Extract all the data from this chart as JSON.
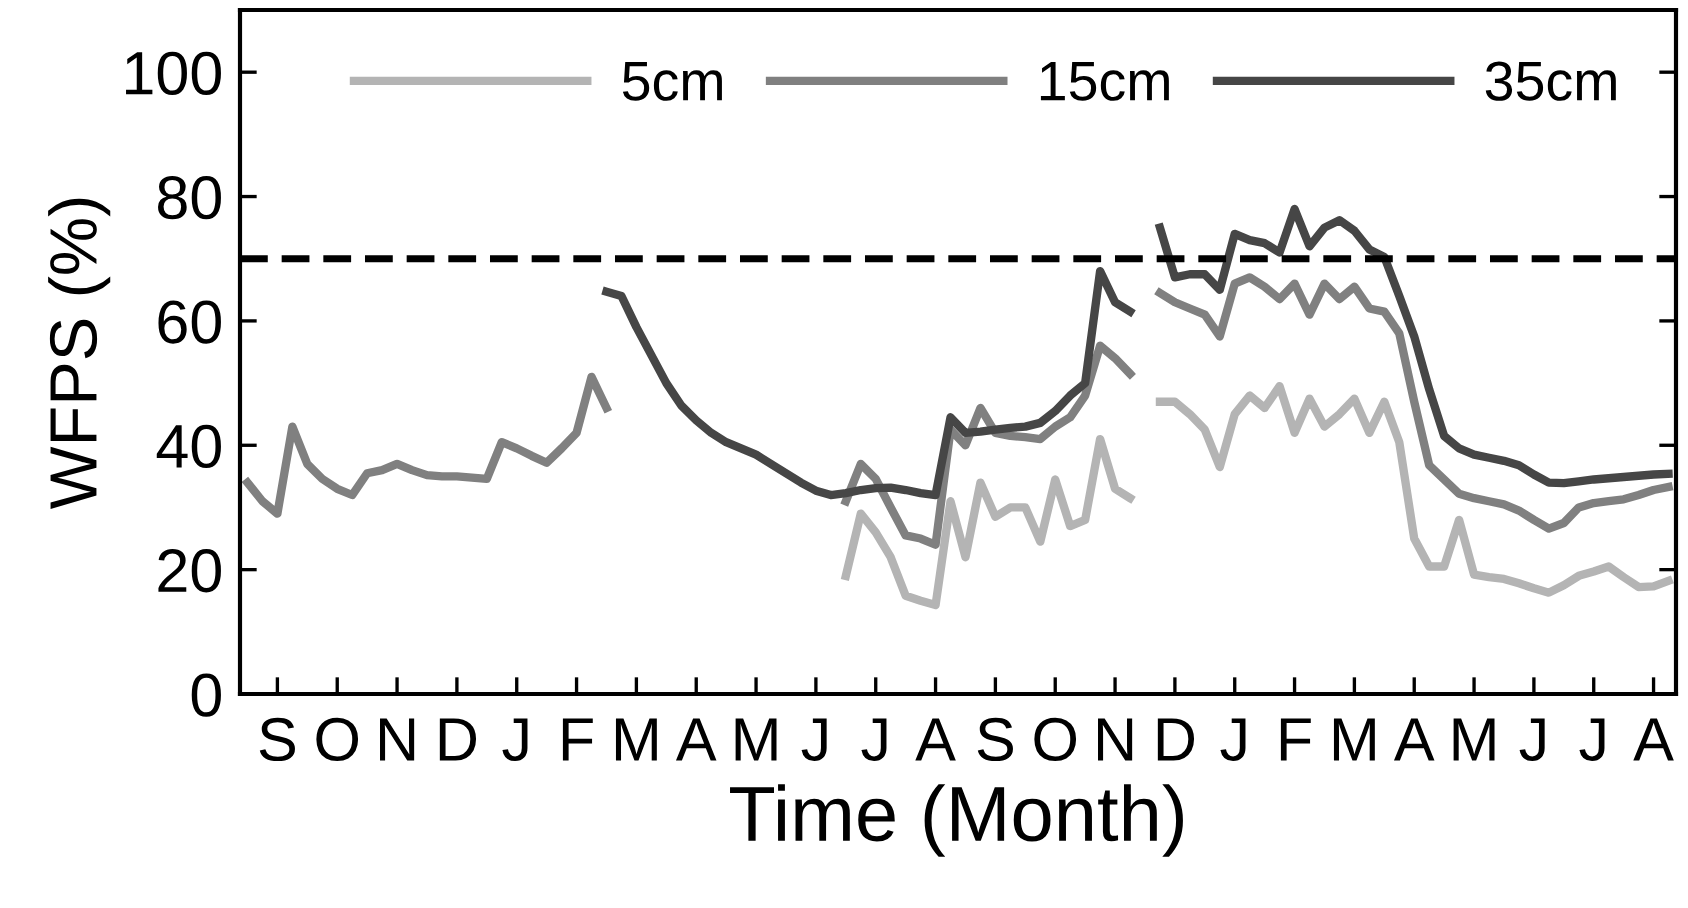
{
  "chart_data": {
    "type": "line",
    "xlabel": "Time (Month)",
    "ylabel": "WFPS (%)",
    "categories": [
      null,
      null,
      "S",
      null,
      null,
      null,
      "O",
      null,
      null,
      null,
      "N",
      null,
      null,
      null,
      "D",
      null,
      null,
      null,
      "J",
      null,
      null,
      null,
      "F",
      null,
      null,
      null,
      "M",
      null,
      null,
      null,
      "A",
      null,
      null,
      null,
      "M",
      null,
      null,
      null,
      "J",
      null,
      null,
      null,
      "J",
      null,
      null,
      null,
      "A",
      null,
      null,
      null,
      "S",
      null,
      null,
      null,
      "O",
      null,
      null,
      null,
      "N",
      null,
      null,
      null,
      "D",
      null,
      null,
      null,
      "J",
      null,
      null,
      null,
      "F",
      null,
      null,
      null,
      "M",
      null,
      null,
      null,
      "A",
      null,
      null,
      null,
      "M",
      null,
      null,
      null,
      "J",
      null,
      null,
      null,
      "J",
      null,
      null,
      null,
      "A",
      null
    ],
    "ylim": [
      0,
      110
    ],
    "yticks": [
      0,
      20,
      40,
      60,
      80,
      100
    ],
    "grid": false,
    "legend": "top",
    "marker": "none",
    "line_style": "solid",
    "ref_lines": [
      {
        "axis": "y",
        "value": 70,
        "color": "#000000",
        "line_style": "dashed"
      }
    ],
    "series": [
      {
        "name": "5cm",
        "color": "#b4b4b4",
        "values": [
          null,
          null,
          null,
          null,
          null,
          null,
          null,
          null,
          null,
          null,
          null,
          null,
          null,
          null,
          null,
          null,
          null,
          null,
          null,
          null,
          null,
          null,
          null,
          null,
          null,
          null,
          null,
          null,
          null,
          null,
          null,
          null,
          null,
          null,
          null,
          null,
          null,
          null,
          null,
          null,
          19,
          29,
          26,
          22,
          15.8,
          15,
          14.3,
          31,
          22,
          34,
          28.5,
          30,
          30,
          24.5,
          34.5,
          27,
          28,
          41,
          33,
          31.5,
          null,
          47,
          47,
          45,
          42.5,
          36.5,
          45,
          48,
          46,
          49.5,
          42,
          47.5,
          43,
          45,
          47.5,
          42,
          47,
          40.5,
          25,
          20.5,
          20.5,
          28,
          19.2,
          18.8,
          18.5,
          17.8,
          17,
          16.3,
          17.5,
          19,
          19.7,
          20.5,
          18.8,
          17.2,
          17.3,
          18.2
        ]
      },
      {
        "name": "15cm",
        "color": "#808080",
        "values": [
          34,
          31,
          29,
          43,
          37,
          34.6,
          33,
          32,
          35.5,
          36,
          37,
          36,
          35.2,
          35,
          35,
          34.8,
          34.6,
          40.5,
          39.5,
          38.3,
          37.2,
          39.5,
          42,
          51,
          46,
          null,
          null,
          null,
          null,
          null,
          null,
          null,
          null,
          null,
          null,
          null,
          null,
          null,
          null,
          null,
          31,
          37,
          34.6,
          30,
          25.5,
          25,
          24,
          42.5,
          40,
          46,
          42,
          41.5,
          41.3,
          41,
          43,
          44.5,
          48,
          56,
          54,
          51.5,
          null,
          64.5,
          63,
          62,
          61,
          57.5,
          66,
          67,
          65.5,
          63.5,
          66,
          61,
          66,
          63.5,
          65.5,
          62,
          61.5,
          58,
          47,
          36.8,
          34.5,
          32.2,
          31.5,
          31,
          30.5,
          29.5,
          28,
          26.6,
          27.5,
          30,
          30.7,
          31,
          31.3,
          32,
          32.8,
          33.3
        ]
      },
      {
        "name": "35cm",
        "color": "#464646",
        "values": [
          null,
          null,
          null,
          null,
          null,
          null,
          null,
          null,
          null,
          null,
          null,
          null,
          null,
          null,
          null,
          null,
          null,
          null,
          null,
          null,
          null,
          null,
          null,
          null,
          64.7,
          64,
          59,
          54.5,
          50,
          46.4,
          44,
          42,
          40.5,
          39.5,
          38.5,
          37,
          35.5,
          34,
          32.7,
          32,
          32.3,
          32.8,
          33.1,
          33.2,
          32.8,
          32.3,
          32,
          44.5,
          42,
          42.2,
          42.5,
          42.8,
          43,
          43.6,
          45.5,
          48,
          50,
          68,
          63,
          61.5,
          null,
          75,
          67,
          67.5,
          67.5,
          65,
          74,
          73,
          72.5,
          71,
          78,
          72,
          75,
          76.2,
          74.5,
          71.5,
          70.3,
          64,
          57.5,
          49,
          41.5,
          39.5,
          38.5,
          38,
          37.5,
          36.8,
          35.3,
          34,
          33.9,
          34.2,
          34.5,
          34.7,
          34.9,
          35.1,
          35.3,
          35.4
        ]
      }
    ]
  }
}
